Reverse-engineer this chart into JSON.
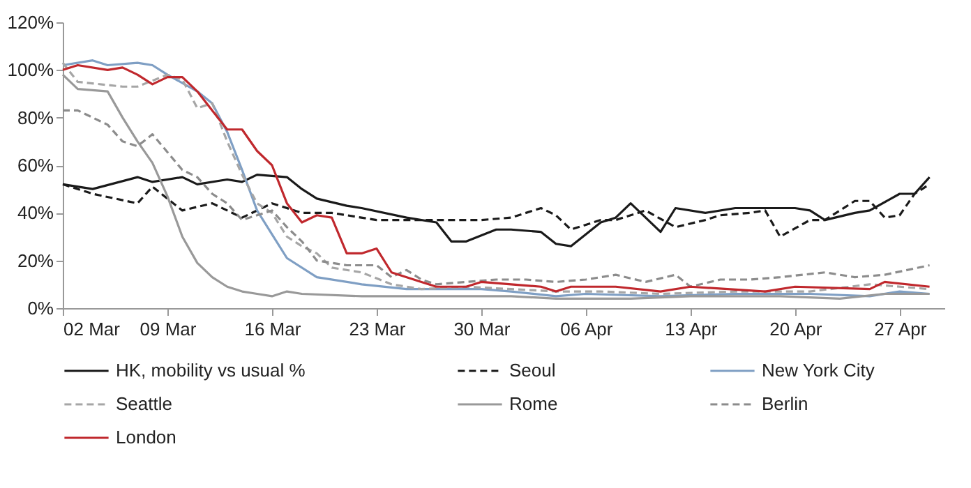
{
  "chart_data": {
    "type": "line",
    "ylim": [
      0,
      120
    ],
    "yticks": [
      {
        "value": 0,
        "label": "0%"
      },
      {
        "value": 20,
        "label": "20%"
      },
      {
        "value": 40,
        "label": "40%"
      },
      {
        "value": 60,
        "label": "60%"
      },
      {
        "value": 80,
        "label": "80%"
      },
      {
        "value": 100,
        "label": "100%"
      },
      {
        "value": 120,
        "label": "120%"
      }
    ],
    "xlim": [
      "--03-02",
      "--04-30"
    ],
    "xticks": [
      {
        "value": "--03-02",
        "label": "02 Mar"
      },
      {
        "value": "--03-09",
        "label": "09 Mar"
      },
      {
        "value": "--03-16",
        "label": "16 Mar"
      },
      {
        "value": "--03-23",
        "label": "23 Mar"
      },
      {
        "value": "--03-30",
        "label": "30 Mar"
      },
      {
        "value": "--04-06",
        "label": "06 Apr"
      },
      {
        "value": "--04-13",
        "label": "13 Apr"
      },
      {
        "value": "--04-20",
        "label": "20 Apr"
      },
      {
        "value": "--04-27",
        "label": "27 Apr"
      }
    ],
    "grid": false,
    "legend": "bottom",
    "marker": "none",
    "series": [
      {
        "name": "HK, mobility vs usual %",
        "color": "#1a1a1a",
        "line_style": "solid",
        "x": [
          "--03-02",
          "--03-04",
          "--03-07",
          "--03-08",
          "--03-10",
          "--03-11",
          "--03-13",
          "--03-14",
          "--03-15",
          "--03-17",
          "--03-18",
          "--03-19",
          "--03-21",
          "--03-22",
          "--03-25",
          "--03-27",
          "--03-28",
          "--03-29",
          "--03-31",
          "--04-01",
          "--04-03",
          "--04-04",
          "--04-05",
          "--04-07",
          "--04-08",
          "--04-09",
          "--04-11",
          "--04-12",
          "--04-14",
          "--04-16",
          "--04-20",
          "--04-21",
          "--04-22",
          "--04-24",
          "--04-25",
          "--04-27",
          "--04-28",
          "--04-29"
        ],
        "values": [
          52,
          50,
          55,
          53,
          55,
          52,
          54,
          53,
          56,
          55,
          50,
          46,
          43,
          42,
          38,
          36,
          28,
          28,
          33,
          33,
          32,
          27,
          26,
          36,
          38,
          44,
          32,
          42,
          40,
          42,
          42,
          41,
          37,
          40,
          41,
          48,
          48,
          55
        ]
      },
      {
        "name": "Seoul",
        "color": "#1a1a1a",
        "line_style": "dashed",
        "x": [
          "--03-02",
          "--03-04",
          "--03-07",
          "--03-08",
          "--03-10",
          "--03-12",
          "--03-14",
          "--03-16",
          "--03-18",
          "--03-20",
          "--03-23",
          "--03-27",
          "--03-30",
          "--04-01",
          "--04-03",
          "--04-04",
          "--04-05",
          "--04-07",
          "--04-08",
          "--04-10",
          "--04-12",
          "--04-14",
          "--04-15",
          "--04-17",
          "--04-18",
          "--04-19",
          "--04-21",
          "--04-22",
          "--04-24",
          "--04-25",
          "--04-26",
          "--04-27",
          "--04-28",
          "--04-29"
        ],
        "values": [
          52,
          48,
          44,
          51,
          41,
          44,
          38,
          44,
          40,
          40,
          37,
          37,
          37,
          38,
          42,
          39,
          33,
          37,
          37,
          41,
          34,
          37,
          39,
          40,
          41,
          30,
          37,
          37,
          45,
          45,
          38,
          39,
          48,
          52
        ]
      },
      {
        "name": "New York City",
        "color": "#7f9fc4",
        "line_style": "solid",
        "x": [
          "--03-02",
          "--03-04",
          "--03-05",
          "--03-07",
          "--03-08",
          "--03-09",
          "--03-11",
          "--03-12",
          "--03-13",
          "--03-14",
          "--03-15",
          "--03-16",
          "--03-17",
          "--03-19",
          "--03-22",
          "--03-25",
          "--03-30",
          "--04-01",
          "--04-04",
          "--04-06",
          "--04-11",
          "--04-16",
          "--04-21",
          "--04-25",
          "--04-27",
          "--04-29"
        ],
        "values": [
          102,
          104,
          102,
          103,
          102,
          98,
          91,
          86,
          74,
          58,
          41,
          31,
          21,
          13,
          10,
          8,
          8,
          7,
          5,
          6,
          5,
          6,
          6,
          5,
          7,
          6
        ]
      },
      {
        "name": "Seattle",
        "color": "#a6a6a6",
        "line_style": "dashed",
        "x": [
          "--03-02",
          "--03-03",
          "--03-06",
          "--03-07",
          "--03-09",
          "--03-10",
          "--03-11",
          "--03-12",
          "--03-13",
          "--03-14",
          "--03-15",
          "--03-16",
          "--03-17",
          "--03-18",
          "--03-19",
          "--03-20",
          "--03-22",
          "--03-24",
          "--03-26",
          "--03-29",
          "--04-01",
          "--04-04",
          "--04-07",
          "--04-11",
          "--04-16",
          "--04-21",
          "--04-25",
          "--04-29"
        ],
        "values": [
          103,
          95,
          93,
          93,
          98,
          96,
          84,
          86,
          70,
          56,
          44,
          40,
          30,
          26,
          23,
          17,
          15,
          10,
          8,
          9,
          8,
          7,
          7,
          6,
          7,
          7,
          10,
          8
        ]
      },
      {
        "name": "Rome",
        "color": "#999999",
        "line_style": "solid",
        "x": [
          "--03-02",
          "--03-03",
          "--03-05",
          "--03-06",
          "--03-07",
          "--03-08",
          "--03-09",
          "--03-10",
          "--03-11",
          "--03-12",
          "--03-13",
          "--03-14",
          "--03-15",
          "--03-16",
          "--03-17",
          "--03-18",
          "--03-22",
          "--03-27",
          "--04-01",
          "--04-04",
          "--04-09",
          "--04-13",
          "--04-19",
          "--04-23",
          "--04-26",
          "--04-29"
        ],
        "values": [
          98,
          92,
          91,
          80,
          70,
          61,
          47,
          30,
          19,
          13,
          9,
          7,
          6,
          5,
          7,
          6,
          5,
          5,
          5,
          4,
          4,
          5,
          5,
          4,
          6,
          6
        ]
      },
      {
        "name": "Berlin",
        "color": "#8c8c8c",
        "line_style": "dashed",
        "x": [
          "--03-02",
          "--03-03",
          "--03-05",
          "--03-06",
          "--03-07",
          "--03-08",
          "--03-10",
          "--03-11",
          "--03-12",
          "--03-13",
          "--03-14",
          "--03-16",
          "--03-17",
          "--03-18",
          "--03-19",
          "--03-21",
          "--03-23",
          "--03-24",
          "--03-25",
          "--03-26",
          "--03-27",
          "--03-29",
          "--03-31",
          "--04-02",
          "--04-04",
          "--04-06",
          "--04-08",
          "--04-10",
          "--04-12",
          "--04-13",
          "--04-15",
          "--04-17",
          "--04-19",
          "--04-22",
          "--04-24",
          "--04-26",
          "--04-29"
        ],
        "values": [
          83,
          83,
          77,
          70,
          68,
          73,
          58,
          55,
          48,
          44,
          37,
          41,
          34,
          28,
          20,
          18,
          18,
          13,
          16,
          12,
          10,
          11,
          12,
          12,
          11,
          12,
          14,
          11,
          14,
          9,
          12,
          12,
          13,
          15,
          13,
          14,
          18
        ]
      },
      {
        "name": "London",
        "color": "#c0282d",
        "line_style": "solid",
        "x": [
          "--03-02",
          "--03-03",
          "--03-05",
          "--03-06",
          "--03-07",
          "--03-08",
          "--03-09",
          "--03-10",
          "--03-11",
          "--03-12",
          "--03-13",
          "--03-14",
          "--03-15",
          "--03-16",
          "--03-17",
          "--03-18",
          "--03-19",
          "--03-20",
          "--03-21",
          "--03-22",
          "--03-23",
          "--03-24",
          "--03-26",
          "--03-27",
          "--03-29",
          "--03-30",
          "--04-01",
          "--04-03",
          "--04-04",
          "--04-05",
          "--04-08",
          "--04-11",
          "--04-13",
          "--04-18",
          "--04-20",
          "--04-25",
          "--04-26",
          "--04-29"
        ],
        "values": [
          100,
          102,
          100,
          101,
          98,
          94,
          97,
          97,
          91,
          83,
          75,
          75,
          66,
          60,
          44,
          36,
          39,
          38,
          23,
          23,
          25,
          15,
          11,
          9,
          9,
          11,
          10,
          9,
          7,
          9,
          9,
          7,
          9,
          7,
          9,
          8,
          11,
          9
        ]
      }
    ]
  }
}
